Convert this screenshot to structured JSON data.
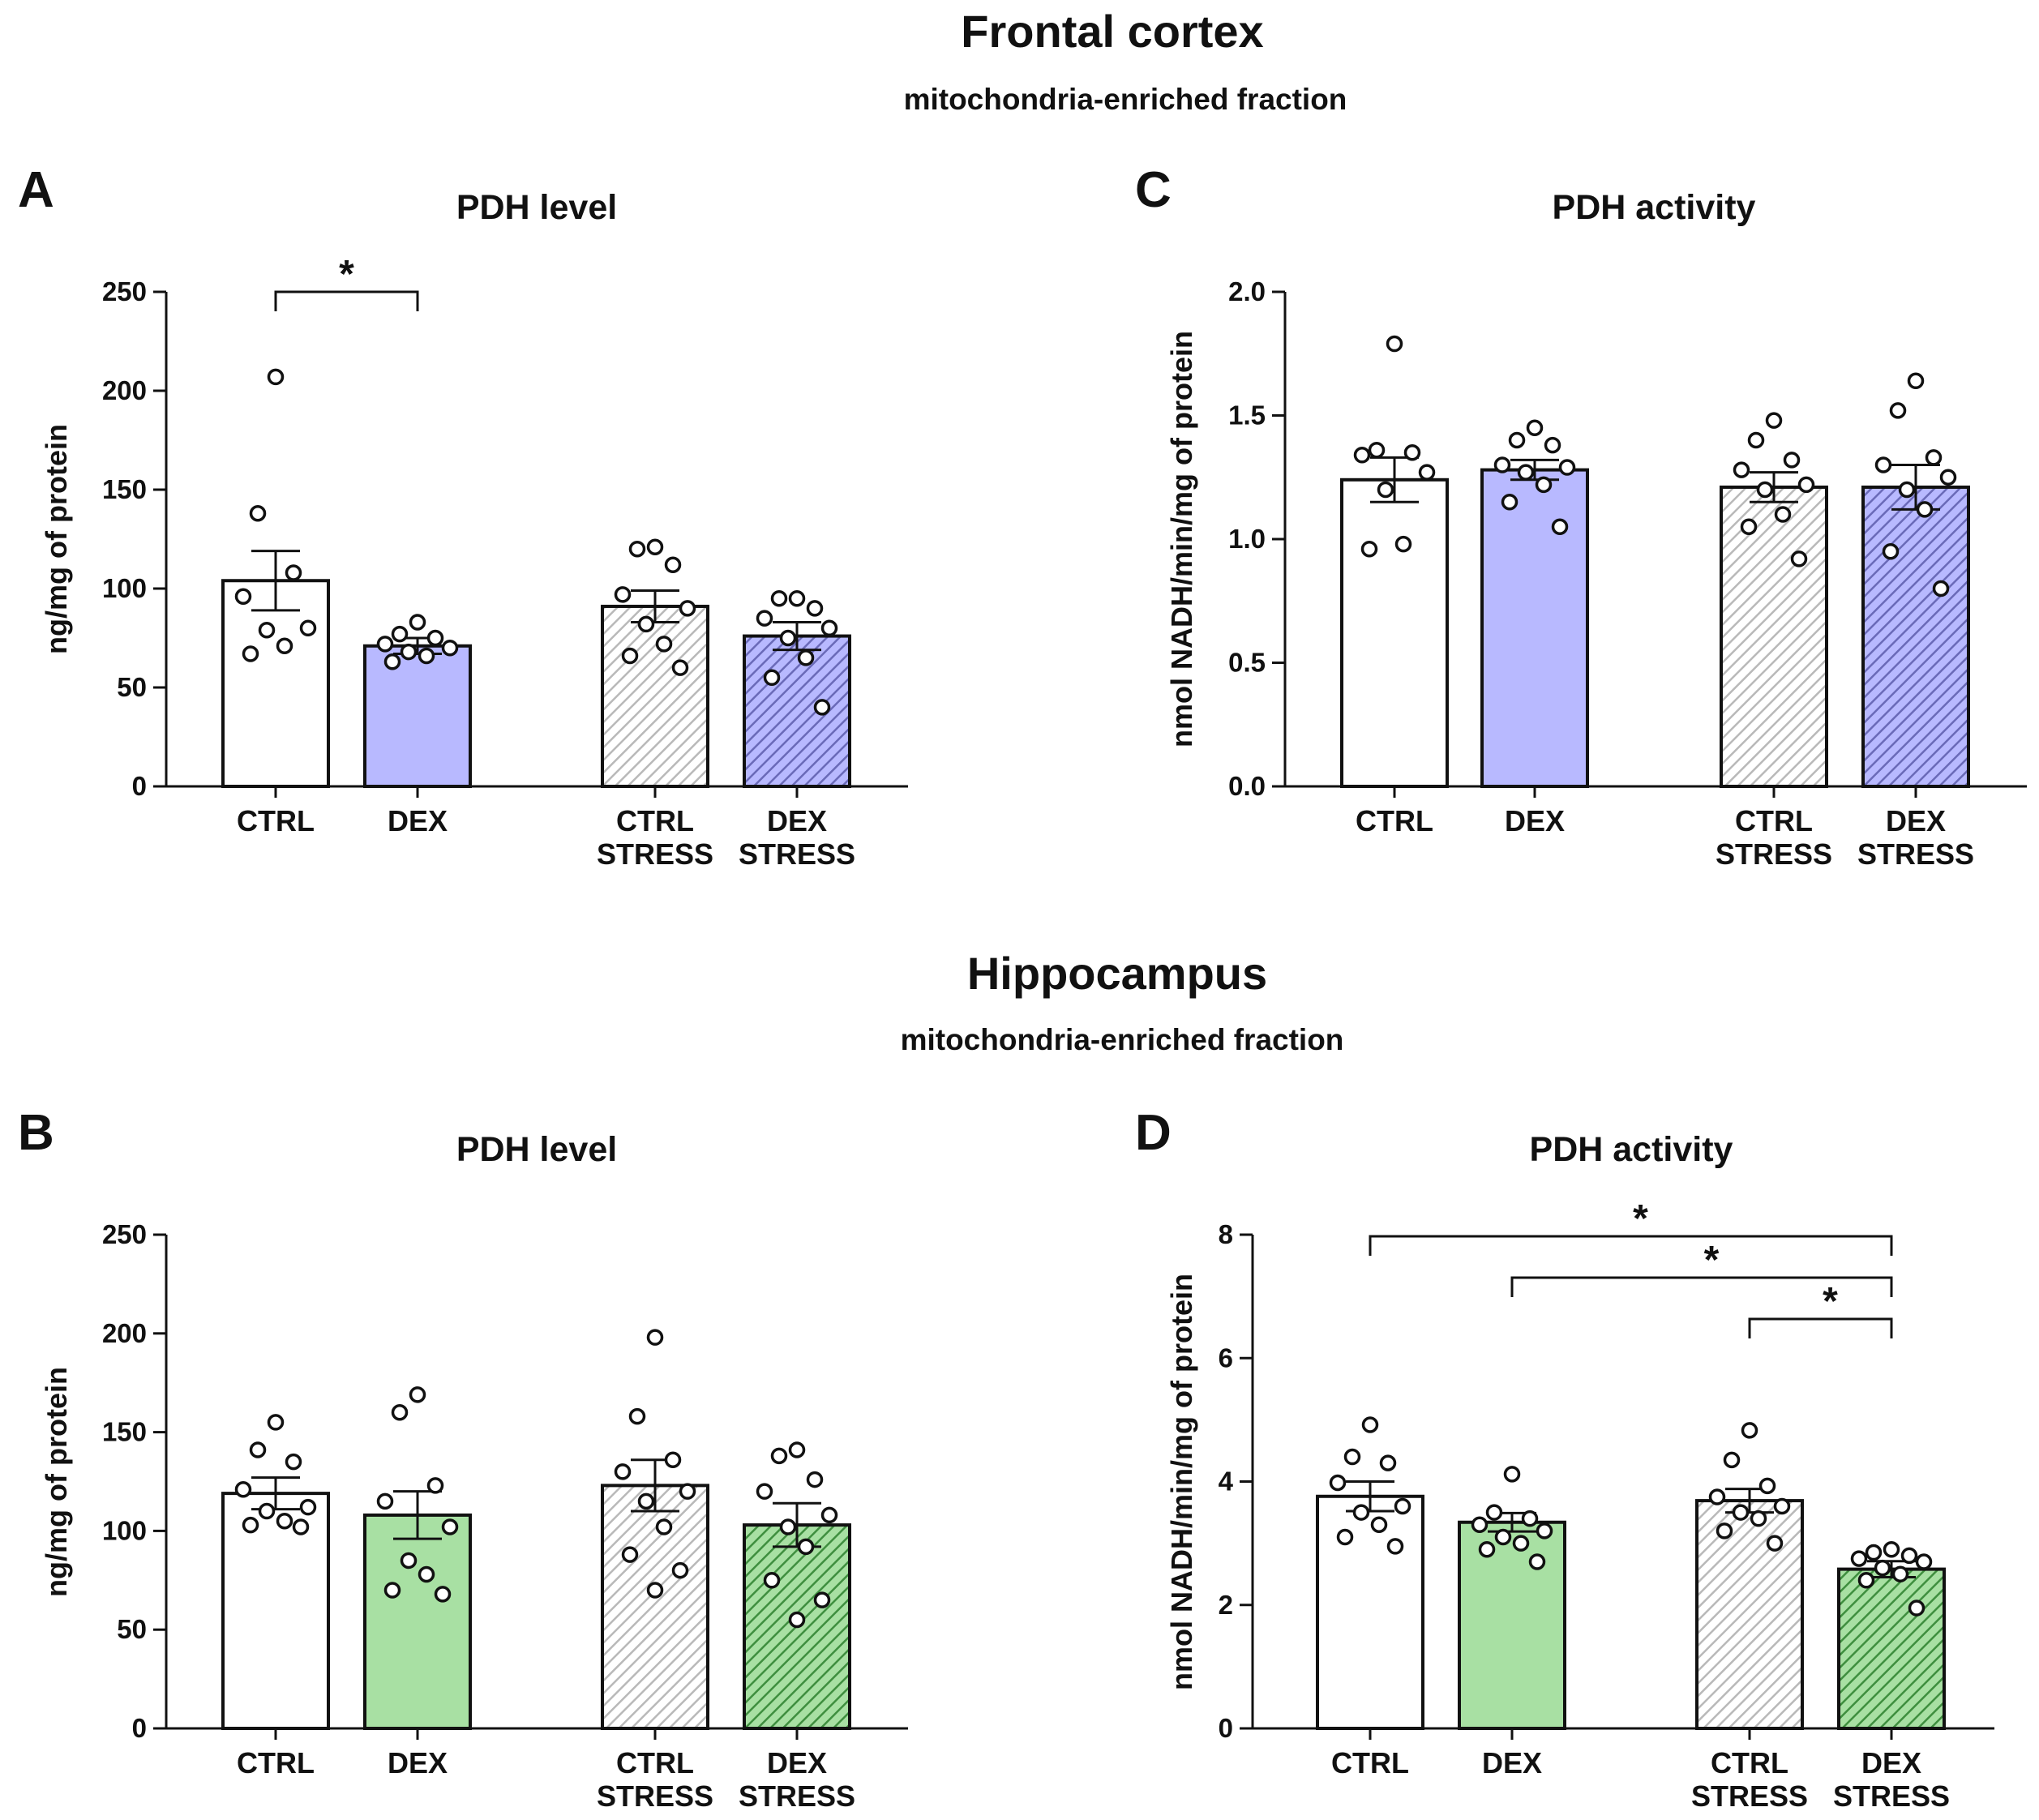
{
  "sections": {
    "frontal": {
      "title": "Frontal cortex",
      "subtitle": "mitochondria-enriched fraction"
    },
    "hippocampus": {
      "title": "Hippocampus",
      "subtitle": "mitochondria-enriched fraction"
    }
  },
  "colors": {
    "frontal_dex": "#b8b9ff",
    "hippocampus_dex": "#a8e0a3",
    "ctrl": "#ffffff",
    "hatch_ctrl_stress": "#b9b9b9",
    "hatch_dex_stress_frontal": "#6a6ab8",
    "hatch_dex_stress_hippocampus": "#3f8f3f",
    "ink": "#111111"
  },
  "chart_data": [
    {
      "id": "A",
      "letter": "A",
      "type": "bar",
      "title": "PDH level",
      "ylabel": "ng/mg of protein",
      "xlabel": "",
      "ylim": [
        0,
        250
      ],
      "yticks": [
        0,
        50,
        100,
        150,
        200,
        250
      ],
      "ytick_labels": [
        "0",
        "50",
        "100",
        "150",
        "200",
        "250"
      ],
      "categories": [
        [
          "CTRL"
        ],
        [
          "DEX"
        ],
        [
          "CTRL",
          "STRESS"
        ],
        [
          "DEX",
          "STRESS"
        ]
      ],
      "values": [
        104,
        71,
        91,
        76
      ],
      "sem": [
        15,
        4,
        8,
        7
      ],
      "points": [
        [
          207,
          138,
          108,
          96,
          80,
          79,
          71,
          67
        ],
        [
          83,
          77,
          75,
          72,
          70,
          68,
          66,
          63
        ],
        [
          121,
          120,
          112,
          97,
          90,
          82,
          72,
          66,
          60
        ],
        [
          95,
          95,
          90,
          85,
          80,
          75,
          65,
          55,
          40
        ]
      ],
      "significance": [
        {
          "from": 0,
          "to": 1,
          "label": "*"
        }
      ]
    },
    {
      "id": "C",
      "letter": "C",
      "type": "bar",
      "title": "PDH activity",
      "ylabel": "nmol NADH/min/mg of protein",
      "xlabel": "",
      "ylim": [
        0,
        2.0
      ],
      "yticks": [
        0,
        0.5,
        1.0,
        1.5,
        2.0
      ],
      "ytick_labels": [
        "0.0",
        "0.5",
        "1.0",
        "1.5",
        "2.0"
      ],
      "categories": [
        [
          "CTRL"
        ],
        [
          "DEX"
        ],
        [
          "CTRL",
          "STRESS"
        ],
        [
          "DEX",
          "STRESS"
        ]
      ],
      "values": [
        1.24,
        1.28,
        1.21,
        1.21
      ],
      "sem": [
        0.09,
        0.04,
        0.06,
        0.09
      ],
      "points": [
        [
          1.79,
          1.36,
          1.35,
          1.34,
          1.27,
          1.2,
          0.98,
          0.96
        ],
        [
          1.45,
          1.4,
          1.38,
          1.3,
          1.29,
          1.27,
          1.22,
          1.15,
          1.05
        ],
        [
          1.48,
          1.4,
          1.32,
          1.28,
          1.22,
          1.2,
          1.1,
          1.05,
          0.92
        ],
        [
          1.64,
          1.52,
          1.33,
          1.3,
          1.25,
          1.2,
          1.12,
          0.95,
          0.8
        ]
      ],
      "significance": []
    },
    {
      "id": "B",
      "letter": "B",
      "type": "bar",
      "title": "PDH level",
      "ylabel": "ng/mg of protein",
      "xlabel": "",
      "ylim": [
        0,
        250
      ],
      "yticks": [
        0,
        50,
        100,
        150,
        200,
        250
      ],
      "ytick_labels": [
        "0",
        "50",
        "100",
        "150",
        "200",
        "250"
      ],
      "categories": [
        [
          "CTRL"
        ],
        [
          "DEX"
        ],
        [
          "CTRL",
          "STRESS"
        ],
        [
          "DEX",
          "STRESS"
        ]
      ],
      "values": [
        119,
        108,
        123,
        103
      ],
      "sem": [
        8,
        12,
        13,
        11
      ],
      "points": [
        [
          155,
          141,
          135,
          121,
          112,
          110,
          105,
          103,
          102
        ],
        [
          169,
          160,
          123,
          115,
          102,
          85,
          78,
          70,
          68
        ],
        [
          198,
          158,
          136,
          130,
          120,
          115,
          102,
          88,
          80,
          70
        ],
        [
          141,
          138,
          126,
          120,
          108,
          102,
          92,
          75,
          65,
          55
        ]
      ],
      "significance": []
    },
    {
      "id": "D",
      "letter": "D",
      "type": "bar",
      "title": "PDH activity",
      "ylabel": "nmol NADH/min/mg of protein",
      "xlabel": "",
      "ylim": [
        0,
        8
      ],
      "yticks": [
        0,
        2,
        4,
        6,
        8
      ],
      "ytick_labels": [
        "0",
        "2",
        "4",
        "6",
        "8"
      ],
      "categories": [
        [
          "CTRL"
        ],
        [
          "DEX"
        ],
        [
          "CTRL",
          "STRESS"
        ],
        [
          "DEX",
          "STRESS"
        ]
      ],
      "values": [
        3.76,
        3.34,
        3.69,
        2.58
      ],
      "sem": [
        0.24,
        0.15,
        0.19,
        0.13
      ],
      "points": [
        [
          4.92,
          4.4,
          4.3,
          3.98,
          3.6,
          3.5,
          3.3,
          3.1,
          2.95
        ],
        [
          4.12,
          3.5,
          3.4,
          3.3,
          3.2,
          3.1,
          3.0,
          2.9,
          2.7
        ],
        [
          4.83,
          4.35,
          3.93,
          3.75,
          3.6,
          3.5,
          3.4,
          3.2,
          3.0
        ],
        [
          2.9,
          2.85,
          2.8,
          2.75,
          2.7,
          2.6,
          2.5,
          2.4,
          1.95
        ]
      ],
      "significance": [
        {
          "from": 0,
          "to": 3,
          "label": "*"
        },
        {
          "from": 1,
          "to": 3,
          "label": "*"
        },
        {
          "from": 2,
          "to": 3,
          "label": "*"
        }
      ]
    }
  ]
}
